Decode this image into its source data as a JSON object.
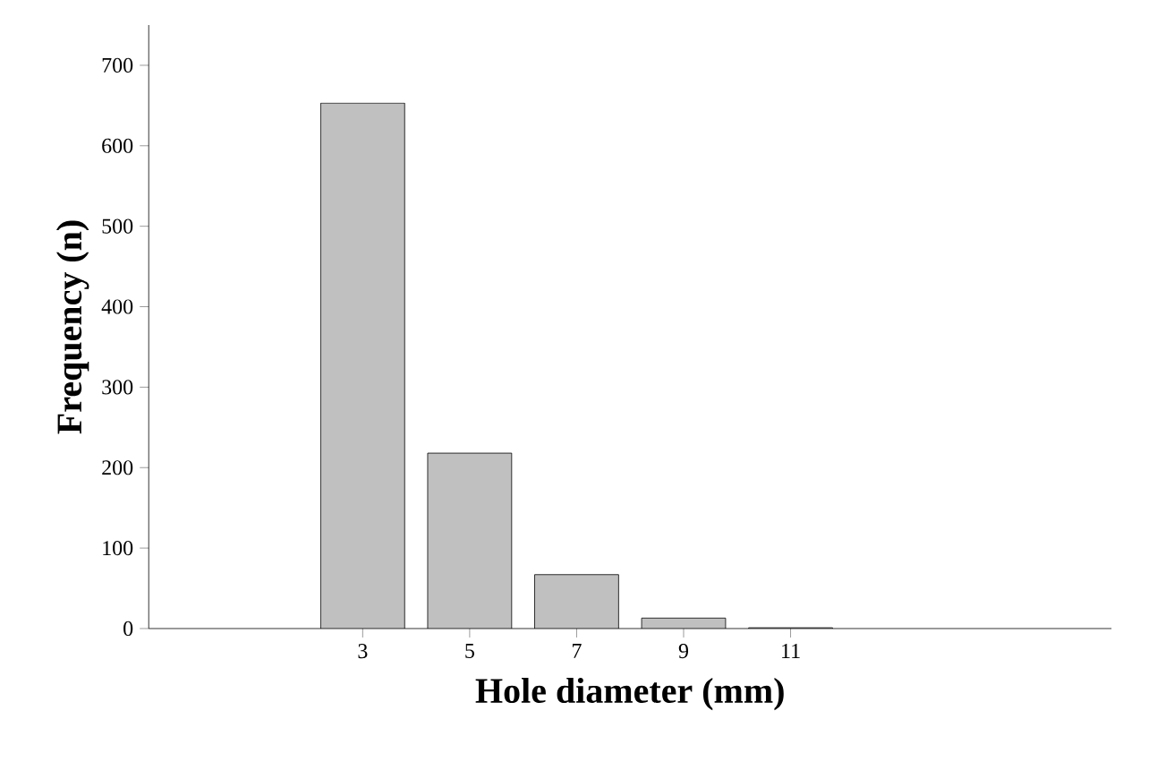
{
  "chart_data": {
    "type": "bar",
    "xlabel": "Hole diameter (mm)",
    "ylabel": "Frequency (n)",
    "x": [
      3,
      5,
      7,
      9,
      11
    ],
    "values": [
      653,
      218,
      67,
      13,
      1
    ],
    "color": "#c0c0c0",
    "xlim": [
      -1,
      17
    ],
    "xticks": [
      3,
      5,
      7,
      9,
      11
    ],
    "ylim": [
      0,
      750
    ],
    "yticks": [
      0,
      100,
      200,
      300,
      400,
      500,
      600,
      700
    ]
  }
}
